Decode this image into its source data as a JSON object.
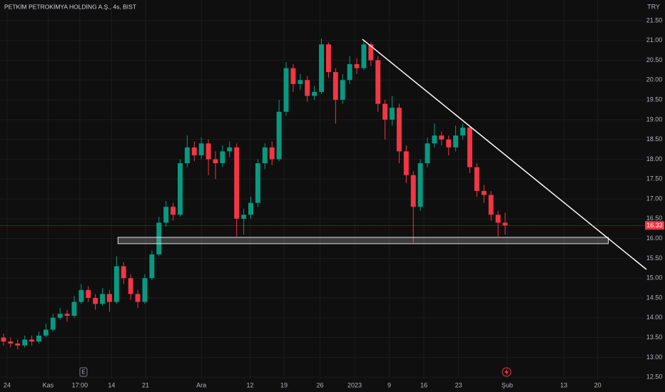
{
  "chart_data": {
    "type": "candlestick",
    "title": "PETKİM PETROKİMYA HOLDİNG A.Ş., 4s, BIST",
    "currency": "TRY",
    "earnings_marker": "E",
    "up_color": "#089981",
    "down_color": "#f23645",
    "open": [
      13.5,
      13.4,
      13.35,
      13.3,
      13.45,
      13.4,
      13.55,
      13.7,
      14.0,
      14.1,
      14.05,
      14.4,
      14.7,
      14.5,
      14.35,
      14.6,
      14.4,
      15.3,
      15.0,
      14.6,
      14.4,
      15.0,
      15.6,
      16.4,
      16.8,
      16.6,
      17.9,
      18.3,
      18.1,
      18.4,
      18.0,
      17.9,
      18.2,
      18.3,
      16.5,
      16.6,
      16.9,
      17.9,
      18.3,
      18.0,
      19.2,
      20.3,
      19.9,
      20.0,
      19.6,
      19.7,
      20.9,
      20.2,
      19.5,
      20.0,
      20.4,
      20.3,
      20.9,
      20.5,
      19.4,
      19.0,
      19.3,
      18.2,
      17.6,
      16.8,
      17.9,
      18.4,
      18.6,
      18.5,
      18.3,
      18.6,
      18.8,
      17.8,
      17.2,
      17.1,
      16.6,
      16.4
    ],
    "high": [
      13.6,
      13.5,
      13.45,
      13.55,
      13.55,
      13.65,
      13.85,
      14.1,
      14.25,
      14.2,
      14.55,
      14.85,
      14.8,
      14.6,
      14.75,
      14.7,
      15.55,
      15.4,
      15.1,
      14.7,
      15.1,
      15.7,
      16.55,
      16.95,
      16.9,
      18.0,
      18.6,
      18.45,
      18.55,
      18.5,
      18.2,
      18.35,
      18.45,
      18.4,
      16.75,
      17.05,
      18.0,
      18.4,
      18.45,
      19.5,
      20.45,
      20.4,
      20.15,
      20.1,
      19.85,
      21.05,
      20.95,
      20.3,
      20.15,
      20.6,
      20.55,
      21.0,
      20.95,
      20.6,
      19.5,
      19.6,
      19.4,
      18.35,
      17.7,
      18.0,
      18.55,
      18.9,
      18.7,
      18.6,
      18.85,
      18.9,
      18.85,
      17.9,
      17.35,
      17.2,
      16.7,
      16.65
    ],
    "low": [
      13.3,
      13.25,
      13.2,
      13.25,
      13.3,
      13.35,
      13.5,
      13.65,
      13.95,
      13.9,
      14.0,
      14.35,
      14.4,
      14.2,
      14.3,
      14.15,
      14.35,
      14.85,
      14.45,
      14.25,
      14.35,
      14.95,
      15.55,
      16.3,
      16.45,
      16.55,
      17.8,
      17.95,
      18.0,
      17.6,
      17.5,
      17.8,
      18.05,
      16.05,
      16.1,
      16.5,
      16.8,
      17.75,
      17.85,
      17.95,
      19.1,
      19.7,
      19.75,
      19.45,
      19.5,
      19.65,
      20.05,
      18.9,
      19.4,
      19.9,
      20.15,
      20.25,
      20.35,
      19.2,
      18.5,
      18.85,
      17.9,
      17.4,
      15.9,
      16.7,
      17.8,
      18.3,
      18.35,
      18.1,
      18.2,
      18.5,
      17.65,
      17.05,
      16.9,
      16.45,
      16.05,
      16.1
    ],
    "close": [
      13.4,
      13.35,
      13.3,
      13.45,
      13.4,
      13.55,
      13.7,
      14.0,
      14.1,
      14.05,
      14.4,
      14.7,
      14.5,
      14.35,
      14.6,
      14.4,
      15.3,
      15.0,
      14.6,
      14.4,
      15.0,
      15.6,
      16.4,
      16.8,
      16.6,
      17.9,
      18.3,
      18.1,
      18.4,
      18.0,
      17.9,
      18.2,
      18.3,
      16.5,
      16.6,
      16.9,
      17.9,
      18.3,
      18.0,
      19.2,
      20.3,
      19.9,
      20.0,
      19.6,
      19.7,
      20.9,
      20.2,
      19.5,
      20.0,
      20.4,
      20.3,
      20.9,
      20.5,
      19.4,
      19.0,
      19.3,
      18.2,
      17.6,
      16.8,
      17.9,
      18.4,
      18.6,
      18.5,
      18.3,
      18.6,
      18.8,
      17.8,
      17.2,
      17.1,
      16.6,
      16.4,
      16.33
    ],
    "xlim": [
      -0.5,
      90.7
    ],
    "ylim": [
      12.45,
      22.02
    ],
    "xticks": [
      {
        "value": 0.5,
        "label": "24"
      },
      {
        "value": 6.3,
        "label": "Kas"
      },
      {
        "value": 10.8,
        "label": "17:00"
      },
      {
        "value": 15.3,
        "label": "14"
      },
      {
        "value": 20.1,
        "label": "21"
      },
      {
        "value": 28,
        "label": "Ara"
      },
      {
        "value": 34.9,
        "label": "12"
      },
      {
        "value": 39.7,
        "label": "19"
      },
      {
        "value": 44.8,
        "label": "26"
      },
      {
        "value": 49.7,
        "label": "2023"
      },
      {
        "value": 54.6,
        "label": "9"
      },
      {
        "value": 59.5,
        "label": "16"
      },
      {
        "value": 64.4,
        "label": "23"
      },
      {
        "value": 71.3,
        "label": "Şub"
      },
      {
        "value": 79.3,
        "label": "13"
      },
      {
        "value": 84.1,
        "label": "20"
      }
    ],
    "yticks": [
      {
        "value": 12.5,
        "label": "12.50"
      },
      {
        "value": 13,
        "label": "13.00"
      },
      {
        "value": 13.5,
        "label": "13.50"
      },
      {
        "value": 14,
        "label": "14.00"
      },
      {
        "value": 14.5,
        "label": "14.50"
      },
      {
        "value": 15,
        "label": "15.00"
      },
      {
        "value": 15.5,
        "label": "15.50"
      },
      {
        "value": 16,
        "label": "16.00"
      },
      {
        "value": 16.5,
        "label": "16.50"
      },
      {
        "value": 17,
        "label": "17.00"
      },
      {
        "value": 17.5,
        "label": "17.50"
      },
      {
        "value": 18,
        "label": "18.00"
      },
      {
        "value": 18.5,
        "label": "18.50"
      },
      {
        "value": 19,
        "label": "19.00"
      },
      {
        "value": 19.5,
        "label": "19.50"
      },
      {
        "value": 20,
        "label": "20.00"
      },
      {
        "value": 20.5,
        "label": "20.50"
      },
      {
        "value": 21,
        "label": "21.00"
      },
      {
        "value": 21.5,
        "label": "21.50"
      }
    ],
    "grid": true,
    "trend_line": {
      "x": [
        50.8,
        91.0
      ],
      "y": [
        21.03,
        15.22
      ]
    },
    "support_zone": {
      "x": [
        16.2,
        85.6
      ],
      "y": [
        15.87,
        16.03
      ]
    }
  }
}
